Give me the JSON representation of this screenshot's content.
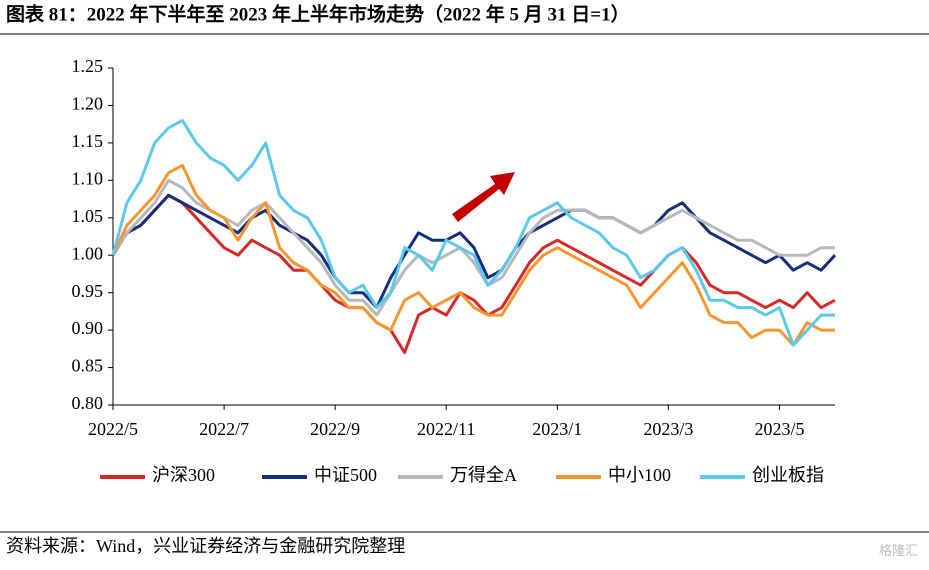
{
  "chart_data": {
    "type": "line",
    "title": "图表 81：2022 年下半年至 2023 年上半年市场走势（2022 年 5 月 31 日=1）",
    "source": "资料来源：Wind，兴业证券经济与金融研究院整理",
    "watermark": "格隆汇",
    "categories": [
      "2022/5",
      null,
      null,
      null,
      null,
      null,
      null,
      null,
      "2022/7",
      null,
      null,
      null,
      null,
      null,
      null,
      null,
      "2022/9",
      null,
      null,
      null,
      null,
      null,
      null,
      null,
      "2022/11",
      null,
      null,
      null,
      null,
      null,
      null,
      null,
      "2023/1",
      null,
      null,
      null,
      null,
      null,
      null,
      null,
      "2023/3",
      null,
      null,
      null,
      null,
      null,
      null,
      null,
      "2023/5",
      null,
      null,
      null,
      null
    ],
    "ylim": [
      0.8,
      1.25
    ],
    "yticks": [
      {
        "value": 0.8,
        "label": "0.80"
      },
      0.85,
      {
        "value": 0.9,
        "label": "0.90"
      },
      0.95,
      {
        "value": 1.0,
        "label": "1.00"
      },
      1.05,
      {
        "value": 1.1,
        "label": "1.10"
      },
      1.15,
      {
        "value": 1.2,
        "label": "1.20"
      },
      1.25
    ],
    "grid": false,
    "legend": "bottom",
    "series": [
      {
        "name": "沪深300",
        "color": "#d7282a",
        "values": [
          1.0,
          1.03,
          1.04,
          1.06,
          1.08,
          1.07,
          1.05,
          1.03,
          1.01,
          1.0,
          1.02,
          1.01,
          1.0,
          0.98,
          0.98,
          0.96,
          0.94,
          0.93,
          0.93,
          0.91,
          0.9,
          0.87,
          0.92,
          0.93,
          0.92,
          0.95,
          0.94,
          0.92,
          0.93,
          0.96,
          0.99,
          1.01,
          1.02,
          1.01,
          1.0,
          0.99,
          0.98,
          0.97,
          0.96,
          0.98,
          1.0,
          1.01,
          0.99,
          0.96,
          0.95,
          0.95,
          0.94,
          0.93,
          0.94,
          0.93,
          0.95,
          0.93,
          0.94
        ]
      },
      {
        "name": "中证500",
        "color": "#152f7a",
        "values": [
          1.0,
          1.03,
          1.04,
          1.06,
          1.08,
          1.07,
          1.06,
          1.05,
          1.04,
          1.03,
          1.05,
          1.06,
          1.04,
          1.03,
          1.02,
          1.0,
          0.97,
          0.95,
          0.95,
          0.93,
          0.97,
          1.0,
          1.03,
          1.02,
          1.02,
          1.03,
          1.01,
          0.97,
          0.98,
          1.01,
          1.03,
          1.04,
          1.05,
          1.06,
          1.06,
          1.05,
          1.05,
          1.04,
          1.03,
          1.04,
          1.06,
          1.07,
          1.05,
          1.03,
          1.02,
          1.01,
          1.0,
          0.99,
          1.0,
          0.98,
          0.99,
          0.98,
          1.0
        ]
      },
      {
        "name": "万得全A",
        "color": "#b8b8bc",
        "values": [
          1.0,
          1.03,
          1.05,
          1.07,
          1.1,
          1.09,
          1.07,
          1.06,
          1.05,
          1.04,
          1.06,
          1.07,
          1.05,
          1.03,
          1.01,
          0.99,
          0.96,
          0.94,
          0.94,
          0.92,
          0.95,
          0.98,
          1.0,
          0.99,
          1.0,
          1.01,
          0.99,
          0.96,
          0.97,
          1.0,
          1.03,
          1.05,
          1.06,
          1.06,
          1.06,
          1.05,
          1.05,
          1.04,
          1.03,
          1.04,
          1.05,
          1.06,
          1.05,
          1.04,
          1.03,
          1.02,
          1.02,
          1.01,
          1.0,
          1.0,
          1.0,
          1.01,
          1.01
        ]
      },
      {
        "name": "中小100",
        "color": "#f7962f",
        "values": [
          1.0,
          1.04,
          1.06,
          1.08,
          1.11,
          1.12,
          1.08,
          1.06,
          1.05,
          1.02,
          1.05,
          1.07,
          1.01,
          0.99,
          0.98,
          0.96,
          0.95,
          0.93,
          0.93,
          0.91,
          0.9,
          0.94,
          0.95,
          0.93,
          0.94,
          0.95,
          0.93,
          0.92,
          0.92,
          0.95,
          0.98,
          1.0,
          1.01,
          1.0,
          0.99,
          0.98,
          0.97,
          0.96,
          0.93,
          0.95,
          0.97,
          0.99,
          0.96,
          0.92,
          0.91,
          0.91,
          0.89,
          0.9,
          0.9,
          0.88,
          0.91,
          0.9,
          0.9
        ]
      },
      {
        "name": "创业板指",
        "color": "#5bc8ec",
        "values": [
          1.0,
          1.07,
          1.1,
          1.15,
          1.17,
          1.18,
          1.15,
          1.13,
          1.12,
          1.1,
          1.12,
          1.15,
          1.08,
          1.06,
          1.05,
          1.02,
          0.97,
          0.95,
          0.96,
          0.93,
          0.95,
          1.01,
          1.0,
          0.98,
          1.02,
          1.01,
          1.0,
          0.96,
          0.98,
          1.01,
          1.05,
          1.06,
          1.07,
          1.05,
          1.04,
          1.03,
          1.01,
          1.0,
          0.97,
          0.98,
          1.0,
          1.01,
          0.98,
          0.94,
          0.94,
          0.93,
          0.93,
          0.92,
          0.93,
          0.88,
          0.9,
          0.92,
          0.92
        ]
      }
    ]
  }
}
